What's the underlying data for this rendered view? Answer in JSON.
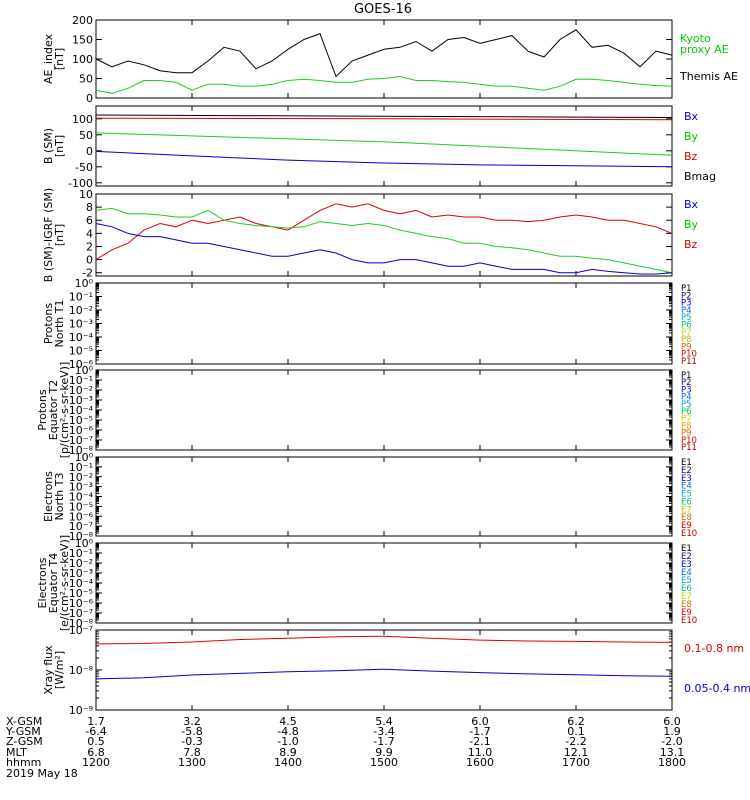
{
  "title": "GOES-16",
  "colors": {
    "black": "#000000",
    "green": "#22cc22",
    "red": "#dd0000",
    "blue": "#0000cc",
    "legend_green": "#00cc00"
  },
  "footer": {
    "row_labels": [
      "X-GSM",
      "Y-GSM",
      "Z-GSM",
      "MLT",
      "hhmm"
    ],
    "date": "2019 May 18",
    "columns": [
      {
        "x_gsm": "1.7",
        "y_gsm": "-6.4",
        "z_gsm": "0.5",
        "mlt": "6.8",
        "hhmm": "1200"
      },
      {
        "x_gsm": "3.2",
        "y_gsm": "-5.8",
        "z_gsm": "-0.3",
        "mlt": "7.8",
        "hhmm": "1300"
      },
      {
        "x_gsm": "4.5",
        "y_gsm": "-4.8",
        "z_gsm": "-1.0",
        "mlt": "8.9",
        "hhmm": "1400"
      },
      {
        "x_gsm": "5.4",
        "y_gsm": "-3.4",
        "z_gsm": "-1.7",
        "mlt": "9.9",
        "hhmm": "1500"
      },
      {
        "x_gsm": "6.0",
        "y_gsm": "-1.7",
        "z_gsm": "-2.1",
        "mlt": "11.0",
        "hhmm": "1600"
      },
      {
        "x_gsm": "6.2",
        "y_gsm": "0.1",
        "z_gsm": "-2.2",
        "mlt": "12.1",
        "hhmm": "1700"
      },
      {
        "x_gsm": "6.0",
        "y_gsm": "1.9",
        "z_gsm": "-2.0",
        "mlt": "13.1",
        "hhmm": "1800"
      }
    ]
  },
  "chart_data": [
    {
      "id": "ae",
      "type": "line",
      "ylabel": [
        "AE_index",
        "[nT]"
      ],
      "ylim": [
        0,
        200
      ],
      "yticks": [
        "0",
        "50",
        "100",
        "150",
        "200"
      ],
      "legend": [
        {
          "text": "Kyoto",
          "color": "#00cc00"
        },
        {
          "text": "proxy AE",
          "color": "#00cc00"
        },
        {
          "text": "Themis AE",
          "color": "#000000"
        }
      ],
      "series": [
        {
          "name": "Themis AE",
          "color": "#000000",
          "x": [
            1200,
            1210,
            1220,
            1230,
            1240,
            1250,
            1300,
            1310,
            1320,
            1330,
            1340,
            1350,
            1400,
            1410,
            1420,
            1430,
            1440,
            1450,
            1500,
            1510,
            1520,
            1530,
            1540,
            1550,
            1600,
            1610,
            1620,
            1630,
            1640,
            1650,
            1700,
            1710,
            1720,
            1730,
            1740,
            1750,
            1800
          ],
          "y": [
            100,
            80,
            95,
            85,
            70,
            65,
            65,
            95,
            130,
            120,
            75,
            95,
            125,
            150,
            165,
            55,
            95,
            110,
            125,
            130,
            145,
            120,
            150,
            155,
            140,
            150,
            160,
            120,
            105,
            150,
            175,
            130,
            135,
            115,
            80,
            120,
            110
          ]
        },
        {
          "name": "Kyoto proxy AE",
          "color": "#22cc22",
          "x": [
            1200,
            1210,
            1220,
            1230,
            1240,
            1250,
            1300,
            1310,
            1320,
            1330,
            1340,
            1350,
            1400,
            1410,
            1420,
            1430,
            1440,
            1450,
            1500,
            1510,
            1520,
            1530,
            1540,
            1550,
            1600,
            1610,
            1620,
            1630,
            1640,
            1650,
            1700,
            1710,
            1720,
            1730,
            1740,
            1750,
            1800
          ],
          "y": [
            20,
            12,
            25,
            45,
            45,
            40,
            20,
            35,
            35,
            30,
            30,
            35,
            45,
            48,
            45,
            40,
            40,
            48,
            50,
            55,
            45,
            45,
            42,
            40,
            35,
            30,
            30,
            25,
            20,
            30,
            48,
            48,
            45,
            40,
            35,
            32,
            30
          ]
        }
      ]
    },
    {
      "id": "bsm",
      "type": "line",
      "ylabel": [
        "B (SM)",
        "[nT]"
      ],
      "ylim": [
        -110,
        140
      ],
      "yticks": [
        "-100",
        "-50",
        "0",
        "50",
        "100"
      ],
      "legend": [
        {
          "text": "Bx",
          "color": "#0000cc"
        },
        {
          "text": "By",
          "color": "#00cc00"
        },
        {
          "text": "Bz",
          "color": "#dd0000"
        },
        {
          "text": "Bmag",
          "color": "#000000"
        }
      ],
      "series": [
        {
          "name": "Bmag",
          "color": "#000000",
          "x": [
            1200,
            1800
          ],
          "y": [
            112,
            104
          ]
        },
        {
          "name": "Bz",
          "color": "#dd0000",
          "x": [
            1200,
            1500,
            1800
          ],
          "y": [
            102,
            100,
            97
          ]
        },
        {
          "name": "By",
          "color": "#22cc22",
          "x": [
            1200,
            1500,
            1800
          ],
          "y": [
            56,
            28,
            -14
          ]
        },
        {
          "name": "Bx",
          "color": "#0000cc",
          "x": [
            1200,
            1300,
            1400,
            1500,
            1600,
            1700,
            1800
          ],
          "y": [
            -2,
            -16,
            -29,
            -38,
            -44,
            -47,
            -50
          ]
        }
      ]
    },
    {
      "id": "bsm_igrf",
      "type": "line",
      "ylabel": [
        "B (SM)-IGRF (SM)",
        "[nT]"
      ],
      "ylim": [
        -2.5,
        10
      ],
      "yticks": [
        "-2",
        "0",
        "2",
        "4",
        "6",
        "8",
        "10"
      ],
      "legend": [
        {
          "text": "Bx",
          "color": "#0000cc"
        },
        {
          "text": "By",
          "color": "#00cc00"
        },
        {
          "text": "Bz",
          "color": "#dd0000"
        }
      ],
      "series": [
        {
          "name": "Bz",
          "color": "#dd0000",
          "x": [
            1200,
            1210,
            1220,
            1230,
            1240,
            1250,
            1300,
            1310,
            1320,
            1330,
            1340,
            1350,
            1400,
            1410,
            1420,
            1430,
            1440,
            1450,
            1500,
            1510,
            1520,
            1530,
            1540,
            1550,
            1600,
            1610,
            1620,
            1630,
            1640,
            1650,
            1700,
            1710,
            1720,
            1730,
            1740,
            1750,
            1800
          ],
          "y": [
            0,
            1.5,
            2.5,
            4.5,
            5.5,
            5,
            6,
            5.5,
            6,
            6.5,
            5.5,
            5,
            4.5,
            6,
            7.5,
            8.5,
            8,
            8.5,
            7.5,
            7,
            7.5,
            6.5,
            6.8,
            6.5,
            6.5,
            6,
            6,
            5.8,
            6,
            6.5,
            6.8,
            6.5,
            6,
            6,
            5.5,
            5,
            4
          ]
        },
        {
          "name": "By",
          "color": "#22cc22",
          "x": [
            1200,
            1210,
            1220,
            1230,
            1240,
            1250,
            1300,
            1310,
            1320,
            1330,
            1340,
            1350,
            1400,
            1410,
            1420,
            1430,
            1440,
            1450,
            1500,
            1510,
            1520,
            1530,
            1540,
            1550,
            1600,
            1610,
            1620,
            1630,
            1640,
            1650,
            1700,
            1710,
            1720,
            1730,
            1740,
            1750,
            1800
          ],
          "y": [
            7.5,
            7.8,
            7,
            7,
            6.8,
            6.5,
            6.5,
            7.5,
            6,
            5.5,
            5.2,
            5,
            4.8,
            5,
            5.8,
            5.5,
            5.2,
            5.5,
            5.2,
            4.5,
            4,
            3.5,
            3.2,
            2.5,
            2.5,
            2,
            1.8,
            1.5,
            1,
            0.5,
            0.5,
            0.2,
            0,
            -0.5,
            -1,
            -1.5,
            -2
          ]
        },
        {
          "name": "Bx",
          "color": "#0000cc",
          "x": [
            1200,
            1210,
            1220,
            1230,
            1240,
            1250,
            1300,
            1310,
            1320,
            1330,
            1340,
            1350,
            1400,
            1410,
            1420,
            1430,
            1440,
            1450,
            1500,
            1510,
            1520,
            1530,
            1540,
            1550,
            1600,
            1610,
            1620,
            1630,
            1640,
            1650,
            1700,
            1710,
            1720,
            1730,
            1740,
            1750,
            1800
          ],
          "y": [
            5.5,
            5,
            4,
            3.5,
            3.5,
            3,
            2.5,
            2.5,
            2,
            1.5,
            1,
            0.5,
            0.5,
            1,
            1.5,
            1,
            0,
            -0.5,
            -0.5,
            0,
            0,
            -0.5,
            -1,
            -1,
            -0.5,
            -1,
            -1.5,
            -1.5,
            -1.5,
            -2,
            -2,
            -1.5,
            -1.8,
            -2,
            -2.2,
            -2.2,
            -2
          ]
        }
      ]
    },
    {
      "id": "protons_north",
      "type": "line",
      "ylabel": [
        "Protons",
        "North T1"
      ],
      "ylim_log": [
        -6,
        0
      ],
      "yticks": [
        "10⁰",
        "10⁻¹",
        "10⁻²",
        "10⁻³",
        "10⁻⁴",
        "10⁻⁵",
        "10⁻⁶"
      ],
      "legend": [
        {
          "text": "P1",
          "color": "#000000"
        },
        {
          "text": "P2",
          "color": "#220066"
        },
        {
          "text": "P3",
          "color": "#0000cc"
        },
        {
          "text": "P4",
          "color": "#0066dd"
        },
        {
          "text": "P5",
          "color": "#00aacc"
        },
        {
          "text": "P6",
          "color": "#00bb88"
        },
        {
          "text": "P7",
          "color": "#cccc00"
        },
        {
          "text": "P8",
          "color": "#ddaa00"
        },
        {
          "text": "P9",
          "color": "#dd6600"
        },
        {
          "text": "P10",
          "color": "#dd0000"
        },
        {
          "text": "P11",
          "color": "#aa0000"
        }
      ]
    },
    {
      "id": "protons_equator",
      "type": "line",
      "ylabel": [
        "Protons",
        "Equator T2",
        "[p/(cm²-s-sr-keV)]"
      ],
      "ylim_log": [
        -8,
        0
      ],
      "yticks": [
        "10⁰",
        "10⁻¹",
        "10⁻²",
        "10⁻³",
        "10⁻⁴",
        "10⁻⁵",
        "10⁻⁶",
        "10⁻⁷",
        "10⁻⁸"
      ],
      "legend": [
        {
          "text": "P1",
          "color": "#000000"
        },
        {
          "text": "P2",
          "color": "#220066"
        },
        {
          "text": "P3",
          "color": "#0000cc"
        },
        {
          "text": "P4",
          "color": "#0066dd"
        },
        {
          "text": "P5",
          "color": "#00aacc"
        },
        {
          "text": "P6",
          "color": "#00bb88"
        },
        {
          "text": "P7",
          "color": "#cccc00"
        },
        {
          "text": "P8",
          "color": "#ddaa00"
        },
        {
          "text": "P9",
          "color": "#dd6600"
        },
        {
          "text": "P10",
          "color": "#dd0000"
        },
        {
          "text": "P11",
          "color": "#aa0000"
        }
      ]
    },
    {
      "id": "electrons_north",
      "type": "line",
      "ylabel": [
        "Electrons",
        "North T3"
      ],
      "ylim_log": [
        -8,
        0
      ],
      "yticks": [
        "10⁰",
        "10⁻¹",
        "10⁻²",
        "10⁻³",
        "10⁻⁴",
        "10⁻⁵",
        "10⁻⁶",
        "10⁻⁷",
        "10⁻⁸"
      ],
      "legend": [
        {
          "text": "E1",
          "color": "#000000"
        },
        {
          "text": "E2",
          "color": "#220066"
        },
        {
          "text": "E3",
          "color": "#0000cc"
        },
        {
          "text": "E4",
          "color": "#0066dd"
        },
        {
          "text": "E5",
          "color": "#00aacc"
        },
        {
          "text": "E6",
          "color": "#00bb88"
        },
        {
          "text": "E7",
          "color": "#cccc00"
        },
        {
          "text": "E8",
          "color": "#dd6600"
        },
        {
          "text": "E9",
          "color": "#dd0000"
        },
        {
          "text": "E10",
          "color": "#aa0000"
        }
      ]
    },
    {
      "id": "electrons_equator",
      "type": "line",
      "ylabel": [
        "Electrons",
        "Equator T4",
        "[e/(cm²-s-sr-keV)]"
      ],
      "ylim_log": [
        -8,
        0
      ],
      "yticks": [
        "10⁰",
        "10⁻¹",
        "10⁻²",
        "10⁻³",
        "10⁻⁴",
        "10⁻⁵",
        "10⁻⁶",
        "10⁻⁷",
        "10⁻⁸"
      ],
      "legend": [
        {
          "text": "E1",
          "color": "#000000"
        },
        {
          "text": "E2",
          "color": "#220066"
        },
        {
          "text": "E3",
          "color": "#0000cc"
        },
        {
          "text": "E4",
          "color": "#0066dd"
        },
        {
          "text": "E5",
          "color": "#00aacc"
        },
        {
          "text": "E6",
          "color": "#00bb88"
        },
        {
          "text": "E7",
          "color": "#cccc00"
        },
        {
          "text": "E8",
          "color": "#dd6600"
        },
        {
          "text": "E9",
          "color": "#dd0000"
        },
        {
          "text": "E10",
          "color": "#aa0000"
        }
      ]
    },
    {
      "id": "xray",
      "type": "line",
      "ylabel": [
        "Xray flux",
        "[W/m²]"
      ],
      "ylim_log": [
        -9,
        -7
      ],
      "yticks": [
        "10⁻⁷",
        "10⁻⁸",
        "10⁻⁹"
      ],
      "legend": [
        {
          "text": "0.1-0.8 nm",
          "color": "#dd0000"
        },
        {
          "text": "0.05-0.4 nm",
          "color": "#0000cc"
        }
      ],
      "series": [
        {
          "name": "0.1-0.8 nm",
          "color": "#dd0000",
          "x": [
            1200,
            1230,
            1300,
            1330,
            1400,
            1430,
            1500,
            1530,
            1600,
            1630,
            1700,
            1730,
            1800
          ],
          "y": [
            4.5e-08,
            4.6e-08,
            5e-08,
            5.8e-08,
            6.2e-08,
            6.8e-08,
            7e-08,
            6.2e-08,
            5.6e-08,
            5.3e-08,
            5.2e-08,
            5e-08,
            4.9e-08
          ]
        },
        {
          "name": "0.05-0.4 nm",
          "color": "#0000cc",
          "x": [
            1200,
            1230,
            1300,
            1330,
            1400,
            1430,
            1500,
            1530,
            1600,
            1630,
            1700,
            1730,
            1800
          ],
          "y": [
            6e-09,
            6.4e-09,
            7.5e-09,
            8.2e-09,
            9e-09,
            9.6e-09,
            1.05e-08,
            9.4e-09,
            8.6e-09,
            8e-09,
            7.6e-09,
            7.2e-09,
            7e-09
          ]
        }
      ]
    }
  ]
}
